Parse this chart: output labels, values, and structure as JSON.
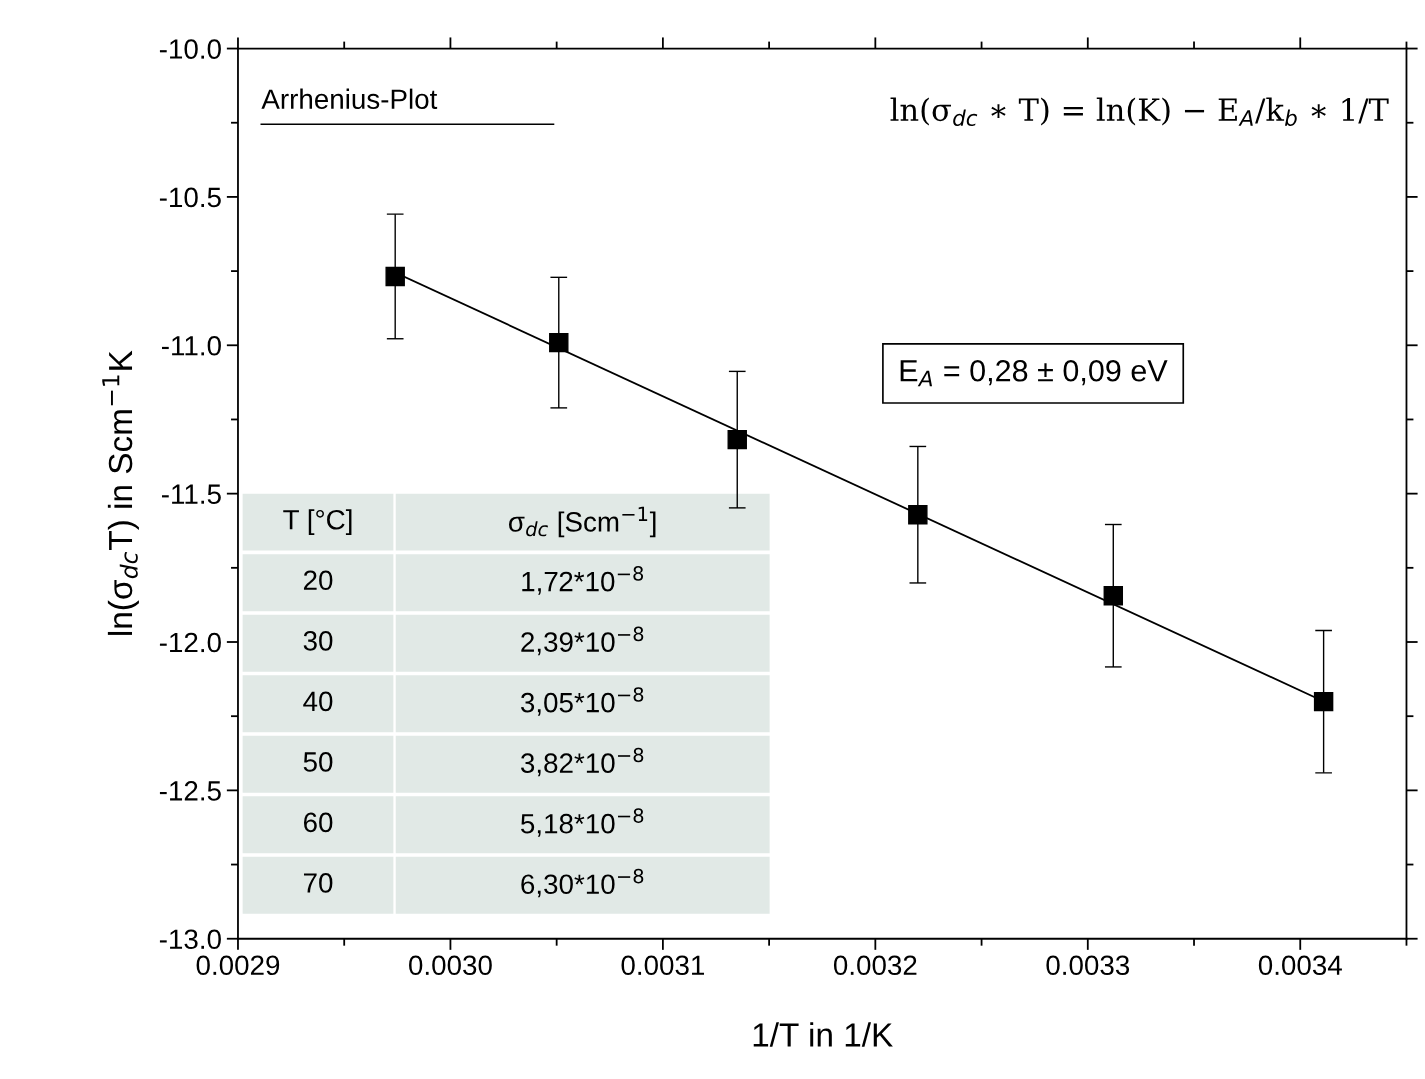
{
  "chart_data": {
    "type": "scatter",
    "xlabel": "1/T in 1/K",
    "ylabel": "ln(σ$_{dc}$T) in Scm$^{−1}$K",
    "xlim": [
      0.0029,
      0.00345
    ],
    "xticks": [
      {
        "value": 0.0029,
        "label": "0.0029"
      },
      {
        "value": 0.003,
        "label": "0.0030"
      },
      {
        "value": 0.0031,
        "label": "0.0031"
      },
      {
        "value": 0.0032,
        "label": "0.0032"
      },
      {
        "value": 0.0033,
        "label": "0.0033"
      },
      {
        "value": 0.0034,
        "label": "0.0034"
      }
    ],
    "ylim": [
      -13.0,
      -10.0
    ],
    "yticks": [
      {
        "value": -13.0,
        "label": "-13.0"
      },
      {
        "value": -12.5,
        "label": "-12.5"
      },
      {
        "value": -12.0,
        "label": "-12.0"
      },
      {
        "value": -11.5,
        "label": "-11.5"
      },
      {
        "value": -11.0,
        "label": "-11.0"
      },
      {
        "value": -10.5,
        "label": "-10.5"
      },
      {
        "value": -10.0,
        "label": "-10.0"
      }
    ],
    "grid": false,
    "series": [
      {
        "color": "#000000",
        "marker": "square",
        "x": [
          0.002974,
          0.003051,
          0.003135,
          0.00322,
          0.003312,
          0.003411
        ],
        "values": [
          -10.768,
          -10.991,
          -11.318,
          -11.571,
          -11.844,
          -12.201
        ],
        "errors": [
          0.21,
          0.22,
          0.23,
          0.23,
          0.24,
          0.24
        ]
      },
      {
        "type": "line",
        "color": "#000000",
        "x": [
          0.002974,
          0.003411
        ],
        "values": [
          -10.755,
          -12.2
        ]
      }
    ],
    "annotations": [
      "Arrhenius-Plot",
      "ln(σ$_{dc}$ ∗ T) = ln(K) − E$_{A}$/k$_{b}$ ∗ 1/T",
      "E$_{A}$ = 0,28 ± 0,09 eV",
      "T [°C]",
      "σ$_{dc}$ [Scm$^{−1}$]",
      "20",
      "1,72*10$^{−8}$",
      "30",
      "2,39*10$^{−8}$",
      "40",
      "3,05*10$^{−8}$",
      "50",
      "3,82*10$^{−8}$",
      "60",
      "5,18*10$^{−8}$",
      "70",
      "6,30*10$^{−8}$"
    ]
  }
}
